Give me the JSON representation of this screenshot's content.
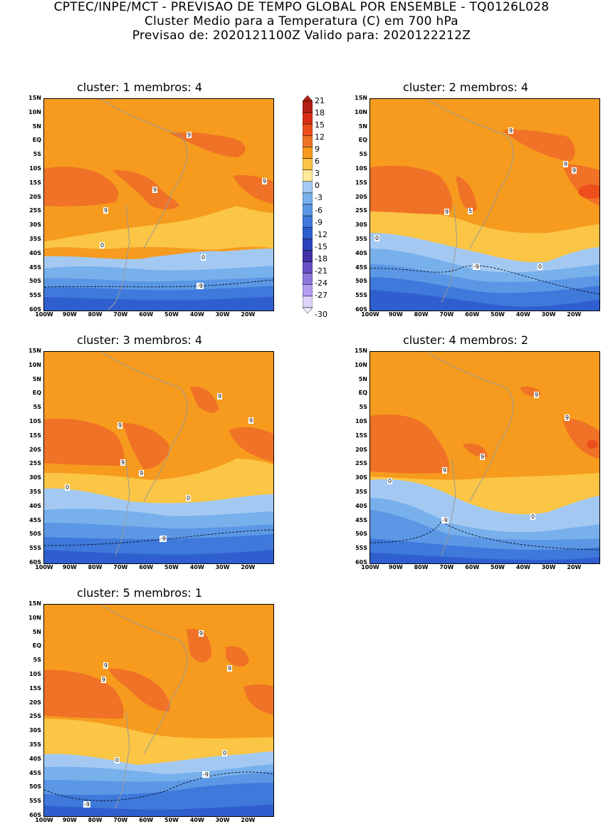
{
  "header": {
    "line1": "CPTEC/INPE/MCT - PREVISAO DE TEMPO GLOBAL POR ENSEMBLE - TQ0126L028",
    "line2": "Cluster Medio para a Temperatura (C) em 700 hPa",
    "line3": "Previsao de: 2020121100Z   Valido para: 2020122212Z"
  },
  "panels": [
    {
      "title": "cluster: 1   membros: 4"
    },
    {
      "title": "cluster: 2   membros: 4"
    },
    {
      "title": "cluster: 3   membros: 4"
    },
    {
      "title": "cluster: 4   membros: 2"
    },
    {
      "title": "cluster: 5   membros: 1"
    }
  ],
  "lat_labels": [
    "15N",
    "10N",
    "5N",
    "EQ",
    "5S",
    "10S",
    "15S",
    "20S",
    "25S",
    "30S",
    "35S",
    "40S",
    "45S",
    "50S",
    "55S",
    "60S"
  ],
  "lon_labels": [
    "100W",
    "90W",
    "80W",
    "70W",
    "60W",
    "50W",
    "40W",
    "30W",
    "20W"
  ],
  "colorbar": {
    "labels": [
      "21",
      "18",
      "15",
      "12",
      "9",
      "6",
      "3",
      "0",
      "-3",
      "-6",
      "-9",
      "-12",
      "-15",
      "-18",
      "-21",
      "-24",
      "-27",
      "-30"
    ],
    "colors": [
      "#b32015",
      "#d82e17",
      "#ec4f1c",
      "#f07226",
      "#f69b1e",
      "#fbc545",
      "#fee99a",
      "#a3c9f3",
      "#78b0ec",
      "#5c97e5",
      "#3f79db",
      "#2f5fcf",
      "#2b44bd",
      "#4130a8",
      "#6850c6",
      "#8d76dc",
      "#b49ff0",
      "#ddd3f8"
    ]
  },
  "contour_labels": {
    "nine": "9",
    "zero": "0",
    "minus_nine": "-9",
    "five": "5"
  }
}
